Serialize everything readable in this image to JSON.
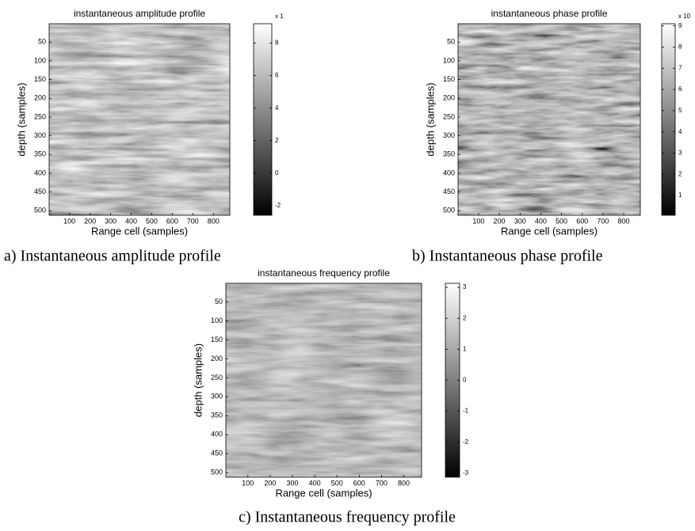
{
  "chart_data": [
    {
      "type": "image",
      "title": "instantaneous amplitude profile",
      "caption": "a) Instantaneous amplitude profile",
      "xlabel": "Range cell (samples)",
      "ylabel": "depth (samples)",
      "colormap": "gray",
      "xlim": [
        1,
        880
      ],
      "ylim": [
        1,
        512
      ],
      "xticks": [
        100,
        200,
        300,
        400,
        500,
        600,
        700,
        800
      ],
      "yticks": [
        50,
        100,
        150,
        200,
        250,
        300,
        350,
        400,
        450,
        500
      ],
      "colorbar": {
        "label": "x 1",
        "lim": [
          -2.6,
          9.2
        ],
        "ticks": [
          -2,
          0,
          2,
          4,
          6,
          8
        ]
      }
    },
    {
      "type": "image",
      "title": "instantaneous phase profile",
      "caption": "b) Instantaneous phase profile",
      "xlabel": "Range cell (samples)",
      "ylabel": "depth (samples)",
      "colormap": "gray",
      "xlim": [
        1,
        880
      ],
      "ylim": [
        1,
        512
      ],
      "xticks": [
        100,
        200,
        300,
        400,
        500,
        600,
        700,
        800
      ],
      "yticks": [
        50,
        100,
        150,
        200,
        250,
        300,
        350,
        400,
        450,
        500
      ],
      "colorbar": {
        "label": "x 10",
        "lim": [
          0.07,
          9.1
        ],
        "ticks": [
          1,
          2,
          3,
          4,
          5,
          6,
          7,
          8,
          9
        ]
      }
    },
    {
      "type": "image",
      "title": "instantaneous frequency profile",
      "caption": "c) Instantaneous frequency profile",
      "xlabel": "Range cell (samples)",
      "ylabel": "depth (samples)",
      "colormap": "gray",
      "xlim": [
        1,
        880
      ],
      "ylim": [
        1,
        512
      ],
      "xticks": [
        100,
        200,
        300,
        400,
        500,
        600,
        700,
        800
      ],
      "yticks": [
        50,
        100,
        150,
        200,
        250,
        300,
        350,
        400,
        450,
        500
      ],
      "colorbar": {
        "lim": [
          -3.13,
          3.13
        ],
        "ticks": [
          -3,
          -2,
          -1,
          0,
          1,
          2,
          3
        ]
      }
    }
  ]
}
